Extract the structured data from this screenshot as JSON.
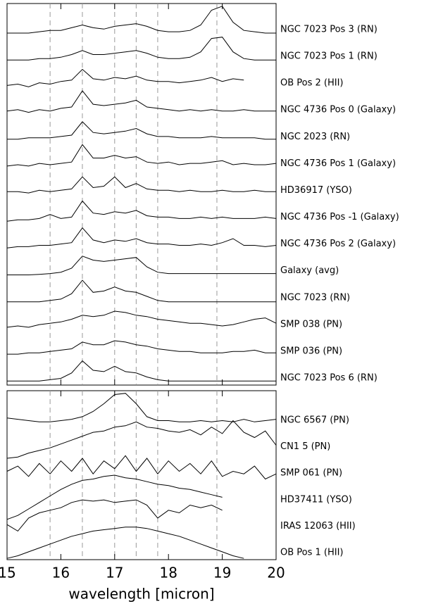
{
  "chart_data": [
    {
      "type": "line",
      "xlim": [
        15,
        20
      ],
      "ylim": [
        0,
        14.2
      ],
      "vlines": [
        15.8,
        16.4,
        17.0,
        17.4,
        17.8,
        18.9
      ],
      "x": [
        15.0,
        15.2,
        15.4,
        15.6,
        15.8,
        16.0,
        16.2,
        16.4,
        16.6,
        16.8,
        17.0,
        17.2,
        17.4,
        17.6,
        17.8,
        18.0,
        18.2,
        18.4,
        18.6,
        18.8,
        19.0,
        19.2,
        19.4,
        19.6,
        19.8,
        20.0
      ],
      "series": [
        {
          "name": "NGC 7023 Pos 3 (RN)",
          "color": "#000000",
          "values": [
            13.1,
            13.1,
            13.1,
            13.15,
            13.2,
            13.2,
            13.3,
            13.4,
            13.3,
            13.25,
            13.35,
            13.4,
            13.45,
            13.35,
            13.2,
            13.15,
            13.15,
            13.2,
            13.4,
            13.95,
            14.1,
            13.5,
            13.2,
            13.15,
            13.1,
            13.1
          ]
        },
        {
          "name": "NGC 7023 Pos 1 (RN)",
          "color": "#000000",
          "values": [
            12.1,
            12.1,
            12.1,
            12.15,
            12.15,
            12.2,
            12.3,
            12.45,
            12.3,
            12.3,
            12.35,
            12.4,
            12.45,
            12.35,
            12.2,
            12.15,
            12.15,
            12.2,
            12.4,
            12.9,
            12.95,
            12.4,
            12.15,
            12.1,
            12.1,
            12.1
          ]
        },
        {
          "name": "OB Pos 2 (HII)",
          "color": "#000000",
          "values": [
            11.15,
            11.2,
            11.1,
            11.25,
            11.2,
            11.3,
            11.35,
            11.75,
            11.4,
            11.35,
            11.45,
            11.4,
            11.5,
            11.35,
            11.3,
            11.3,
            11.25,
            11.3,
            11.35,
            11.45,
            11.3,
            11.4,
            11.35,
            null,
            null,
            null
          ]
        },
        {
          "name": "NGC 4736 Pos 0 (Galaxy)",
          "color": "#000000",
          "values": [
            10.2,
            10.25,
            10.15,
            10.25,
            10.2,
            10.3,
            10.35,
            10.95,
            10.45,
            10.4,
            10.45,
            10.5,
            10.6,
            10.35,
            10.3,
            10.25,
            10.2,
            10.25,
            10.2,
            10.25,
            10.2,
            10.2,
            10.25,
            10.2,
            10.2,
            10.2
          ]
        },
        {
          "name": "NGC 2023 (RN)",
          "color": "#000000",
          "values": [
            9.15,
            9.15,
            9.2,
            9.2,
            9.2,
            9.25,
            9.3,
            9.8,
            9.4,
            9.35,
            9.4,
            9.45,
            9.55,
            9.35,
            9.25,
            9.25,
            9.2,
            9.2,
            9.2,
            9.25,
            9.2,
            9.2,
            9.2,
            9.2,
            9.15,
            9.15
          ]
        },
        {
          "name": "NGC 4736 Pos 1 (Galaxy)",
          "color": "#000000",
          "values": [
            8.15,
            8.2,
            8.15,
            8.25,
            8.2,
            8.25,
            8.3,
            8.95,
            8.45,
            8.45,
            8.55,
            8.45,
            8.5,
            8.3,
            8.25,
            8.3,
            8.2,
            8.25,
            8.25,
            8.3,
            8.35,
            8.2,
            8.25,
            8.2,
            8.2,
            8.25
          ]
        },
        {
          "name": "HD36917 (YSO)",
          "color": "#000000",
          "values": [
            7.2,
            7.2,
            7.15,
            7.25,
            7.2,
            7.25,
            7.3,
            7.75,
            7.35,
            7.4,
            7.75,
            7.35,
            7.5,
            7.3,
            7.25,
            7.25,
            7.2,
            7.25,
            7.2,
            7.2,
            7.25,
            7.2,
            7.2,
            7.25,
            7.2,
            7.2
          ]
        },
        {
          "name": "NGC 4736 Pos -1 (Galaxy)",
          "color": "#000000",
          "values": [
            6.1,
            6.15,
            6.15,
            6.2,
            6.35,
            6.2,
            6.25,
            6.85,
            6.4,
            6.35,
            6.45,
            6.4,
            6.5,
            6.3,
            6.25,
            6.25,
            6.2,
            6.2,
            6.25,
            6.2,
            6.25,
            6.2,
            6.2,
            6.2,
            6.25,
            6.2
          ]
        },
        {
          "name": "NGC 4736 Pos 2 (Galaxy)",
          "color": "#000000",
          "values": [
            5.1,
            5.15,
            5.15,
            5.2,
            5.2,
            5.25,
            5.3,
            5.85,
            5.4,
            5.3,
            5.4,
            5.35,
            5.45,
            5.3,
            5.25,
            5.25,
            5.2,
            5.2,
            5.25,
            5.2,
            5.3,
            5.45,
            5.2,
            5.2,
            5.15,
            5.2
          ]
        },
        {
          "name": "Galaxy (avg)",
          "color": "#000000",
          "values": [
            4.1,
            4.1,
            4.1,
            4.12,
            4.15,
            4.2,
            4.35,
            4.8,
            4.65,
            4.6,
            4.65,
            4.7,
            4.75,
            4.4,
            4.2,
            4.15,
            4.15,
            4.15,
            4.15,
            4.15,
            4.15,
            4.15,
            4.15,
            4.15,
            4.15,
            4.15
          ]
        },
        {
          "name": "NGC 7023 (RN)",
          "color": "#000000",
          "values": [
            3.1,
            3.1,
            3.1,
            3.1,
            3.15,
            3.2,
            3.4,
            3.9,
            3.45,
            3.5,
            3.65,
            3.5,
            3.45,
            3.3,
            3.15,
            3.1,
            3.1,
            3.1,
            3.1,
            3.1,
            3.1,
            3.1,
            3.1,
            3.1,
            3.1,
            3.1
          ]
        },
        {
          "name": "SMP 038 (PN)",
          "color": "#000000",
          "values": [
            2.15,
            2.2,
            2.15,
            2.25,
            2.3,
            2.35,
            2.45,
            2.6,
            2.55,
            2.6,
            2.75,
            2.7,
            2.6,
            2.55,
            2.45,
            2.4,
            2.35,
            2.3,
            2.3,
            2.25,
            2.2,
            2.25,
            2.35,
            2.45,
            2.5,
            2.3
          ]
        },
        {
          "name": "SMP 036 (PN)",
          "color": "#000000",
          "values": [
            1.15,
            1.15,
            1.2,
            1.2,
            1.25,
            1.3,
            1.35,
            1.6,
            1.5,
            1.5,
            1.65,
            1.6,
            1.5,
            1.45,
            1.35,
            1.3,
            1.25,
            1.25,
            1.2,
            1.2,
            1.2,
            1.25,
            1.25,
            1.3,
            1.2,
            1.2
          ]
        },
        {
          "name": "NGC 7023 Pos 6 (RN)",
          "color": "#000000",
          "values": [
            0.15,
            0.15,
            0.15,
            0.15,
            0.2,
            0.25,
            0.45,
            0.9,
            0.55,
            0.5,
            0.7,
            0.5,
            0.45,
            0.3,
            0.2,
            0.15,
            0.15,
            0.15,
            0.15,
            0.15,
            0.15,
            0.15,
            0.15,
            0.15,
            0.15,
            0.15
          ]
        }
      ]
    },
    {
      "type": "line",
      "xlim": [
        15,
        20
      ],
      "ylim": [
        0,
        6.5
      ],
      "xticks": [
        15,
        16,
        17,
        18,
        19,
        20
      ],
      "xlabel": "wavelength [micron]",
      "vlines": [
        15.8,
        16.4,
        17.0,
        17.4,
        17.8,
        18.9
      ],
      "x": [
        15.0,
        15.2,
        15.4,
        15.6,
        15.8,
        16.0,
        16.2,
        16.4,
        16.6,
        16.8,
        17.0,
        17.2,
        17.4,
        17.6,
        17.8,
        18.0,
        18.2,
        18.4,
        18.6,
        18.8,
        19.0,
        19.2,
        19.4,
        19.6,
        19.8,
        20.0
      ],
      "series": [
        {
          "name": "NGC 6567 (PN)",
          "color": "#000000",
          "values": [
            5.45,
            5.4,
            5.35,
            5.3,
            5.3,
            5.35,
            5.4,
            5.5,
            5.7,
            6.0,
            6.35,
            6.4,
            6.0,
            5.5,
            5.35,
            5.35,
            5.3,
            5.3,
            5.35,
            5.3,
            5.35,
            5.3,
            5.4,
            5.3,
            5.35,
            5.4
          ]
        },
        {
          "name": "CN1 5 (PN)",
          "color": "#000000",
          "values": [
            3.9,
            3.95,
            4.1,
            4.2,
            4.3,
            4.45,
            4.6,
            4.75,
            4.9,
            4.95,
            5.1,
            5.15,
            5.3,
            5.1,
            5.05,
            4.95,
            4.9,
            5.0,
            4.8,
            5.1,
            4.85,
            5.35,
            4.9,
            4.7,
            4.95,
            4.4
          ]
        },
        {
          "name": "SMP 061 (PN)",
          "color": "#000000",
          "values": [
            3.4,
            3.6,
            3.2,
            3.7,
            3.3,
            3.8,
            3.4,
            3.9,
            3.3,
            3.8,
            3.5,
            4.0,
            3.4,
            3.9,
            3.3,
            3.8,
            3.4,
            3.7,
            3.3,
            3.8,
            3.2,
            3.4,
            3.3,
            3.6,
            3.1,
            3.3
          ]
        },
        {
          "name": "HD37411 (YSO)",
          "color": "#000000",
          "values": [
            1.55,
            1.7,
            1.95,
            2.2,
            2.45,
            2.7,
            2.9,
            3.05,
            3.1,
            3.2,
            3.25,
            3.15,
            3.1,
            3.0,
            2.9,
            2.85,
            2.75,
            2.7,
            2.6,
            2.5,
            2.4,
            null,
            null,
            null,
            null,
            null
          ]
        },
        {
          "name": "IRAS 12063 (HII)",
          "color": "#000000",
          "values": [
            1.35,
            1.1,
            1.6,
            1.8,
            1.9,
            2.0,
            2.2,
            2.3,
            2.25,
            2.3,
            2.2,
            2.25,
            2.3,
            2.1,
            1.6,
            1.9,
            1.8,
            2.1,
            2.0,
            2.1,
            1.9,
            null,
            null,
            null,
            null,
            null
          ]
        },
        {
          "name": "OB Pos 1 (HII)",
          "color": "#000000",
          "values": [
            0.05,
            0.15,
            0.3,
            0.45,
            0.6,
            0.75,
            0.9,
            1.0,
            1.1,
            1.15,
            1.2,
            1.25,
            1.25,
            1.2,
            1.1,
            1.0,
            0.9,
            0.75,
            0.6,
            0.45,
            0.3,
            0.15,
            0.05,
            null,
            null,
            null
          ]
        }
      ]
    }
  ]
}
